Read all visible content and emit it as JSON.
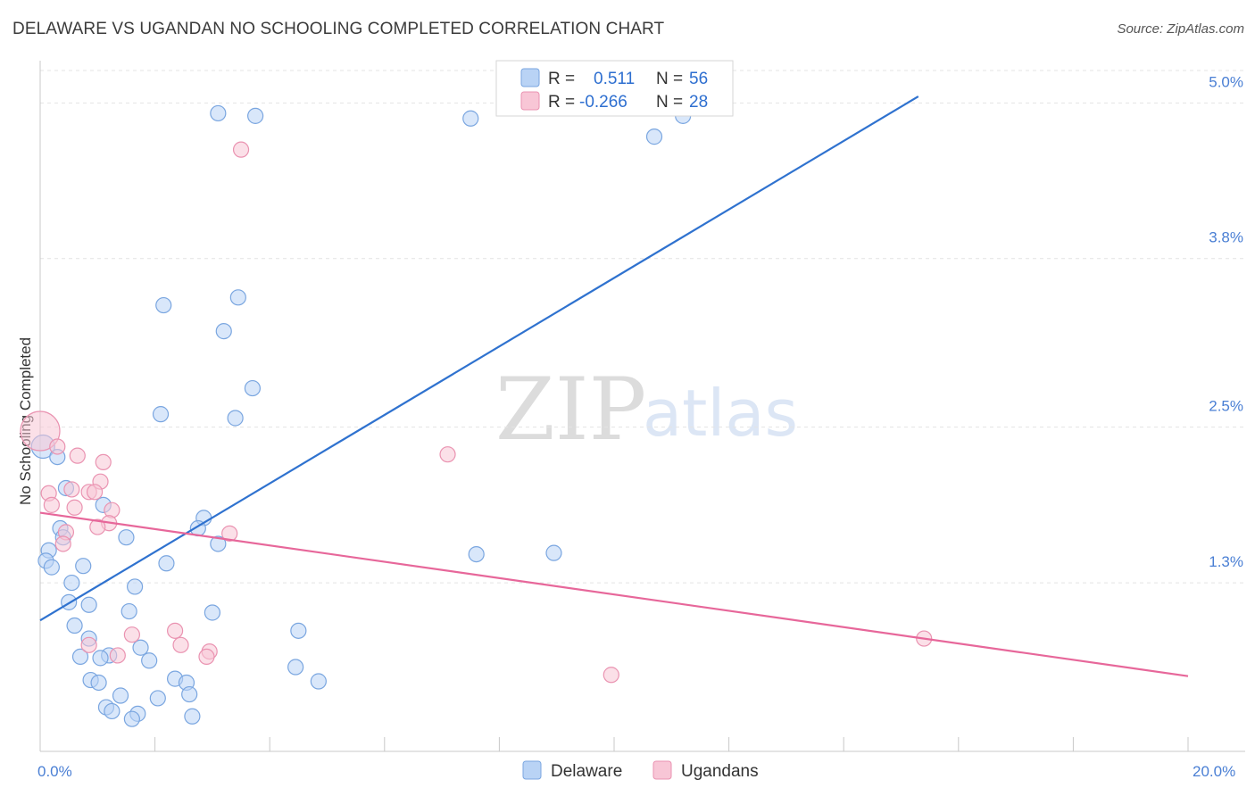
{
  "header": {
    "title": "DELAWARE VS UGANDAN NO SCHOOLING COMPLETED CORRELATION CHART",
    "source": "Source: ZipAtlas.com"
  },
  "watermark": {
    "zip": "ZIP",
    "atlas": "atlas"
  },
  "legend": {
    "delaware": {
      "r_label": "R =",
      "r_value": "0.511",
      "n_label": "N =",
      "n_value": "56"
    },
    "ugandans": {
      "r_label": "R =",
      "r_value": "-0.266",
      "n_label": "N =",
      "n_value": "28"
    }
  },
  "bottom_legend": {
    "delaware": "Delaware",
    "ugandans": "Ugandans"
  },
  "colors": {
    "delaware_fill": "#b9d3f5",
    "delaware_stroke": "#7aa6e0",
    "delaware_line": "#2f72cf",
    "ugandans_fill": "#f8c6d6",
    "ugandans_stroke": "#ea93b1",
    "ugandans_line": "#e7679a",
    "axis_label": "#4a7fd4"
  },
  "chart_data": {
    "type": "scatter",
    "title": "DELAWARE VS UGANDAN NO SCHOOLING COMPLETED CORRELATION CHART",
    "xlabel": "",
    "ylabel": "No Schooling Completed",
    "xlim": [
      0,
      20
    ],
    "ylim": [
      0,
      5.25
    ],
    "x_tick_labels": [
      "0.0%",
      "20.0%"
    ],
    "y_ticks": [
      {
        "value": 1.3,
        "label": "1.3%"
      },
      {
        "value": 2.5,
        "label": "2.5%"
      },
      {
        "value": 3.8,
        "label": "3.8%"
      },
      {
        "value": 5.0,
        "label": "5.0%"
      }
    ],
    "series": [
      {
        "name": "Delaware",
        "points": [
          {
            "x": 0.05,
            "y": 2.35
          },
          {
            "x": 0.3,
            "y": 2.27
          },
          {
            "x": 0.45,
            "y": 2.03
          },
          {
            "x": 1.1,
            "y": 1.9
          },
          {
            "x": 0.35,
            "y": 1.72
          },
          {
            "x": 0.4,
            "y": 1.65
          },
          {
            "x": 0.15,
            "y": 1.55
          },
          {
            "x": 0.1,
            "y": 1.47
          },
          {
            "x": 0.2,
            "y": 1.42
          },
          {
            "x": 0.75,
            "y": 1.43
          },
          {
            "x": 1.5,
            "y": 1.65
          },
          {
            "x": 0.55,
            "y": 1.3
          },
          {
            "x": 1.65,
            "y": 1.27
          },
          {
            "x": 2.2,
            "y": 1.45
          },
          {
            "x": 0.5,
            "y": 1.15
          },
          {
            "x": 0.85,
            "y": 1.13
          },
          {
            "x": 1.55,
            "y": 1.08
          },
          {
            "x": 0.6,
            "y": 0.97
          },
          {
            "x": 0.85,
            "y": 0.87
          },
          {
            "x": 1.75,
            "y": 0.8
          },
          {
            "x": 0.7,
            "y": 0.73
          },
          {
            "x": 1.2,
            "y": 0.74
          },
          {
            "x": 1.05,
            "y": 0.72
          },
          {
            "x": 1.9,
            "y": 0.7
          },
          {
            "x": 0.88,
            "y": 0.55
          },
          {
            "x": 1.02,
            "y": 0.53
          },
          {
            "x": 2.35,
            "y": 0.56
          },
          {
            "x": 2.55,
            "y": 0.53
          },
          {
            "x": 1.4,
            "y": 0.43
          },
          {
            "x": 2.6,
            "y": 0.44
          },
          {
            "x": 2.05,
            "y": 0.41
          },
          {
            "x": 1.15,
            "y": 0.34
          },
          {
            "x": 1.25,
            "y": 0.31
          },
          {
            "x": 1.7,
            "y": 0.29
          },
          {
            "x": 2.65,
            "y": 0.27
          },
          {
            "x": 1.6,
            "y": 0.25
          },
          {
            "x": 2.85,
            "y": 1.8
          },
          {
            "x": 2.75,
            "y": 1.72
          },
          {
            "x": 3.1,
            "y": 1.6
          },
          {
            "x": 3.0,
            "y": 1.07
          },
          {
            "x": 4.5,
            "y": 0.93
          },
          {
            "x": 4.45,
            "y": 0.65
          },
          {
            "x": 4.85,
            "y": 0.54
          },
          {
            "x": 7.6,
            "y": 1.52
          },
          {
            "x": 8.95,
            "y": 1.53
          },
          {
            "x": 2.15,
            "y": 3.44
          },
          {
            "x": 3.45,
            "y": 3.5
          },
          {
            "x": 3.2,
            "y": 3.24
          },
          {
            "x": 3.7,
            "y": 2.8
          },
          {
            "x": 2.1,
            "y": 2.6
          },
          {
            "x": 3.4,
            "y": 2.57
          },
          {
            "x": 3.1,
            "y": 4.92
          },
          {
            "x": 3.75,
            "y": 4.9
          },
          {
            "x": 7.5,
            "y": 4.88
          },
          {
            "x": 10.7,
            "y": 4.74
          },
          {
            "x": 11.2,
            "y": 4.9
          }
        ]
      },
      {
        "name": "Ugandans",
        "points": [
          {
            "x": 0.0,
            "y": 2.47
          },
          {
            "x": 0.3,
            "y": 2.35
          },
          {
            "x": 0.65,
            "y": 2.28
          },
          {
            "x": 1.1,
            "y": 2.23
          },
          {
            "x": 1.05,
            "y": 2.08
          },
          {
            "x": 0.15,
            "y": 1.99
          },
          {
            "x": 0.55,
            "y": 2.02
          },
          {
            "x": 0.85,
            "y": 2.0
          },
          {
            "x": 0.95,
            "y": 2.0
          },
          {
            "x": 0.2,
            "y": 1.9
          },
          {
            "x": 0.6,
            "y": 1.88
          },
          {
            "x": 1.25,
            "y": 1.86
          },
          {
            "x": 1.2,
            "y": 1.76
          },
          {
            "x": 1.0,
            "y": 1.73
          },
          {
            "x": 0.45,
            "y": 1.69
          },
          {
            "x": 0.4,
            "y": 1.6
          },
          {
            "x": 3.3,
            "y": 1.68
          },
          {
            "x": 7.1,
            "y": 2.29
          },
          {
            "x": 3.5,
            "y": 4.64
          },
          {
            "x": 2.35,
            "y": 0.93
          },
          {
            "x": 1.6,
            "y": 0.9
          },
          {
            "x": 2.45,
            "y": 0.82
          },
          {
            "x": 0.85,
            "y": 0.82
          },
          {
            "x": 1.35,
            "y": 0.74
          },
          {
            "x": 2.95,
            "y": 0.77
          },
          {
            "x": 2.9,
            "y": 0.73
          },
          {
            "x": 9.95,
            "y": 0.59
          },
          {
            "x": 15.4,
            "y": 0.87
          }
        ]
      }
    ],
    "trend_lines": [
      {
        "name": "Delaware",
        "x": [
          0,
          15.3
        ],
        "y": [
          1.01,
          5.05
        ]
      },
      {
        "name": "Ugandans",
        "x": [
          0,
          20
        ],
        "y": [
          1.84,
          0.58
        ]
      }
    ]
  }
}
